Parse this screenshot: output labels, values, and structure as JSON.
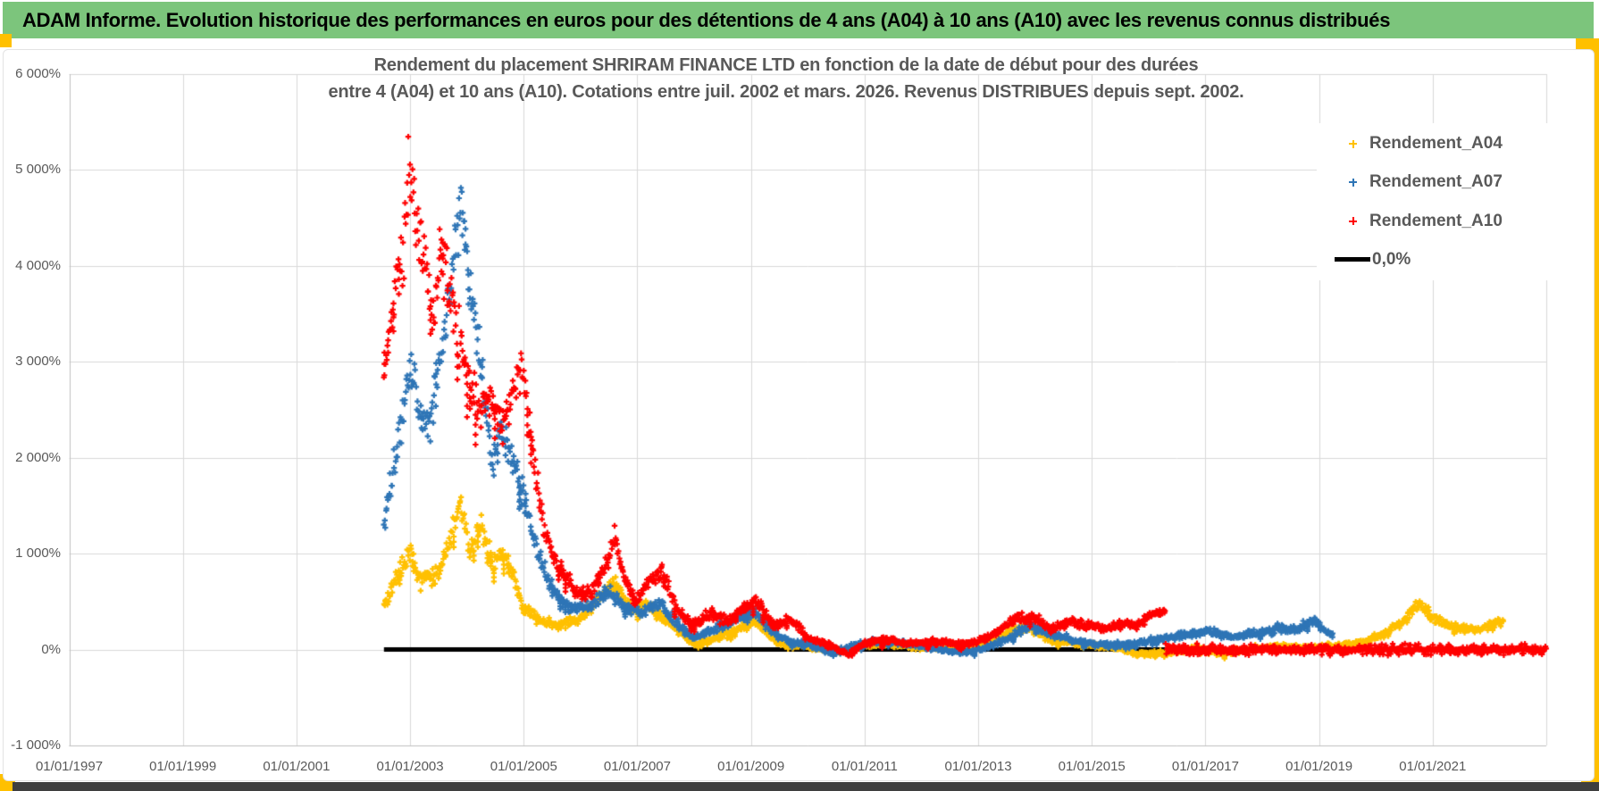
{
  "header": {
    "title": "ADAM Informe. Evolution historique des performances en euros pour des détentions de 4 ans (A04) à 10 ans (A10) avec les revenus connus distribués",
    "bg_color": "#7CC57C",
    "accent_color": "#FFC000"
  },
  "chart_data": {
    "type": "scatter",
    "title_line1": "Rendement du placement SHRIRAM FINANCE LTD en fonction de la date de début pour des durées",
    "title_line2": "entre 4 (A04) et 10 ans (A10).  Cotations entre juil. 2002 et mars. 2026. Revenus DISTRIBUES depuis sept. 2002.",
    "x_range": [
      1997,
      2023
    ],
    "y_range": [
      -1000,
      6000
    ],
    "grid": true,
    "gridline_color": "#D9D9D9",
    "axis_line_color": "#BFBFBF",
    "x_axis": {
      "tick_years": [
        1997,
        1999,
        2001,
        2003,
        2005,
        2007,
        2009,
        2011,
        2013,
        2015,
        2017,
        2019,
        2021
      ],
      "tick_labels": [
        "01/01/1997",
        "01/01/1999",
        "01/01/2001",
        "01/01/2003",
        "01/01/2005",
        "01/01/2007",
        "01/01/2009",
        "01/01/2011",
        "01/01/2013",
        "01/01/2015",
        "01/01/2017",
        "01/01/2019",
        "01/01/2021"
      ]
    },
    "y_axis": {
      "tick_values": [
        6000,
        5000,
        4000,
        3000,
        2000,
        1000,
        0,
        -1000
      ],
      "tick_labels": [
        "6 000%",
        "5 000%",
        "4 000%",
        "3 000%",
        "2 000%",
        "1 000%",
        "0%",
        "-1 000%"
      ]
    },
    "legend": {
      "position": "right-inside",
      "entries": [
        {
          "label": "Rendement_A04",
          "color": "#FFC000",
          "marker": "plus"
        },
        {
          "label": "Rendement_A07",
          "color": "#2E75B6",
          "marker": "plus"
        },
        {
          "label": "Rendement_A10",
          "color": "#FF0000",
          "marker": "plus"
        },
        {
          "label": "0,0%",
          "color": "#000000",
          "marker": "line"
        }
      ]
    },
    "zero_line": {
      "label": "0,0%",
      "value": 0,
      "color": "#000000",
      "start_year": 2002.54,
      "end_year": 2023.0
    },
    "flat_zero_overlay": {
      "color": "#FF0000",
      "value": 0,
      "start_year": 2016.3,
      "end_year": 2023.0
    },
    "series": [
      {
        "name": "Rendement_A04",
        "color": "#FFC000",
        "marker": "plus",
        "start_year": 2002.54,
        "end_year": 2022.25,
        "keypoints": [
          [
            2002.54,
            450
          ],
          [
            2002.8,
            800
          ],
          [
            2003.0,
            1000
          ],
          [
            2003.2,
            700
          ],
          [
            2003.5,
            800
          ],
          [
            2003.75,
            1200
          ],
          [
            2003.9,
            1550
          ],
          [
            2004.05,
            1000
          ],
          [
            2004.25,
            1300
          ],
          [
            2004.45,
            900
          ],
          [
            2004.65,
            1000
          ],
          [
            2004.85,
            700
          ],
          [
            2005.0,
            420
          ],
          [
            2005.3,
            300
          ],
          [
            2005.6,
            260
          ],
          [
            2006.0,
            320
          ],
          [
            2006.4,
            600
          ],
          [
            2006.6,
            690
          ],
          [
            2006.9,
            420
          ],
          [
            2007.2,
            460
          ],
          [
            2007.6,
            250
          ],
          [
            2008.0,
            60
          ],
          [
            2008.4,
            120
          ],
          [
            2008.8,
            220
          ],
          [
            2009.05,
            300
          ],
          [
            2009.5,
            60
          ],
          [
            2010.0,
            30
          ],
          [
            2010.5,
            -20
          ],
          [
            2011.0,
            40
          ],
          [
            2011.5,
            60
          ],
          [
            2012.0,
            20
          ],
          [
            2012.5,
            10
          ],
          [
            2013.0,
            60
          ],
          [
            2013.6,
            200
          ],
          [
            2013.9,
            240
          ],
          [
            2014.3,
            90
          ],
          [
            2014.8,
            60
          ],
          [
            2015.3,
            30
          ],
          [
            2015.8,
            -40
          ],
          [
            2016.3,
            -40
          ],
          [
            2016.8,
            20
          ],
          [
            2017.3,
            -40
          ],
          [
            2017.8,
            10
          ],
          [
            2018.3,
            40
          ],
          [
            2018.8,
            20
          ],
          [
            2019.3,
            40
          ],
          [
            2019.8,
            80
          ],
          [
            2020.2,
            180
          ],
          [
            2020.5,
            320
          ],
          [
            2020.75,
            480
          ],
          [
            2021.0,
            340
          ],
          [
            2021.3,
            240
          ],
          [
            2021.6,
            200
          ],
          [
            2021.9,
            240
          ],
          [
            2022.25,
            290
          ]
        ]
      },
      {
        "name": "Rendement_A07",
        "color": "#2E75B6",
        "marker": "plus",
        "start_year": 2002.54,
        "end_year": 2019.25,
        "keypoints": [
          [
            2002.54,
            1300
          ],
          [
            2002.7,
            1900
          ],
          [
            2002.85,
            2400
          ],
          [
            2003.0,
            2950
          ],
          [
            2003.15,
            2600
          ],
          [
            2003.35,
            2300
          ],
          [
            2003.55,
            3100
          ],
          [
            2003.75,
            3900
          ],
          [
            2003.87,
            4650
          ],
          [
            2004.0,
            4100
          ],
          [
            2004.15,
            3300
          ],
          [
            2004.3,
            2700
          ],
          [
            2004.45,
            1950
          ],
          [
            2004.6,
            2300
          ],
          [
            2004.75,
            2050
          ],
          [
            2004.95,
            1700
          ],
          [
            2005.1,
            1300
          ],
          [
            2005.35,
            850
          ],
          [
            2005.6,
            520
          ],
          [
            2005.9,
            420
          ],
          [
            2006.2,
            480
          ],
          [
            2006.5,
            620
          ],
          [
            2006.8,
            420
          ],
          [
            2007.1,
            390
          ],
          [
            2007.4,
            480
          ],
          [
            2007.7,
            280
          ],
          [
            2008.0,
            120
          ],
          [
            2008.4,
            220
          ],
          [
            2008.7,
            300
          ],
          [
            2009.05,
            400
          ],
          [
            2009.4,
            180
          ],
          [
            2009.7,
            70
          ],
          [
            2010.0,
            60
          ],
          [
            2010.4,
            -30
          ],
          [
            2010.8,
            40
          ],
          [
            2011.2,
            90
          ],
          [
            2011.6,
            70
          ],
          [
            2012.0,
            40
          ],
          [
            2012.4,
            -10
          ],
          [
            2012.8,
            -30
          ],
          [
            2013.2,
            30
          ],
          [
            2013.6,
            140
          ],
          [
            2013.9,
            260
          ],
          [
            2014.3,
            160
          ],
          [
            2014.7,
            90
          ],
          [
            2015.1,
            60
          ],
          [
            2015.5,
            50
          ],
          [
            2015.9,
            80
          ],
          [
            2016.3,
            120
          ],
          [
            2016.7,
            160
          ],
          [
            2017.1,
            190
          ],
          [
            2017.5,
            130
          ],
          [
            2017.9,
            170
          ],
          [
            2018.3,
            230
          ],
          [
            2018.6,
            200
          ],
          [
            2018.9,
            310
          ],
          [
            2019.1,
            200
          ],
          [
            2019.25,
            150
          ]
        ]
      },
      {
        "name": "Rendement_A10",
        "color": "#FF0000",
        "marker": "plus",
        "start_year": 2002.54,
        "end_year": 2016.3,
        "keypoints": [
          [
            2002.54,
            2900
          ],
          [
            2002.7,
            3700
          ],
          [
            2002.85,
            4050
          ],
          [
            2003.0,
            5050
          ],
          [
            2003.1,
            4500
          ],
          [
            2003.25,
            4100
          ],
          [
            2003.4,
            3450
          ],
          [
            2003.55,
            4300
          ],
          [
            2003.7,
            3750
          ],
          [
            2003.85,
            3300
          ],
          [
            2004.0,
            2900
          ],
          [
            2004.2,
            2450
          ],
          [
            2004.4,
            2600
          ],
          [
            2004.6,
            2350
          ],
          [
            2004.8,
            2700
          ],
          [
            2004.95,
            2900
          ],
          [
            2005.05,
            2600
          ],
          [
            2005.2,
            1900
          ],
          [
            2005.35,
            1300
          ],
          [
            2005.5,
            1000
          ],
          [
            2005.7,
            780
          ],
          [
            2005.95,
            560
          ],
          [
            2006.2,
            620
          ],
          [
            2006.45,
            900
          ],
          [
            2006.6,
            1180
          ],
          [
            2006.75,
            800
          ],
          [
            2006.95,
            520
          ],
          [
            2007.2,
            700
          ],
          [
            2007.45,
            780
          ],
          [
            2007.7,
            420
          ],
          [
            2008.0,
            260
          ],
          [
            2008.3,
            380
          ],
          [
            2008.6,
            300
          ],
          [
            2008.85,
            430
          ],
          [
            2009.1,
            510
          ],
          [
            2009.4,
            250
          ],
          [
            2009.7,
            330
          ],
          [
            2010.0,
            120
          ],
          [
            2010.4,
            40
          ],
          [
            2010.7,
            -50
          ],
          [
            2011.0,
            60
          ],
          [
            2011.4,
            110
          ],
          [
            2011.8,
            60
          ],
          [
            2012.2,
            90
          ],
          [
            2012.6,
            60
          ],
          [
            2013.0,
            80
          ],
          [
            2013.4,
            200
          ],
          [
            2013.7,
            340
          ],
          [
            2014.0,
            330
          ],
          [
            2014.3,
            220
          ],
          [
            2014.6,
            290
          ],
          [
            2014.9,
            260
          ],
          [
            2015.2,
            210
          ],
          [
            2015.5,
            280
          ],
          [
            2015.8,
            250
          ],
          [
            2016.0,
            330
          ],
          [
            2016.3,
            400
          ]
        ]
      }
    ]
  }
}
